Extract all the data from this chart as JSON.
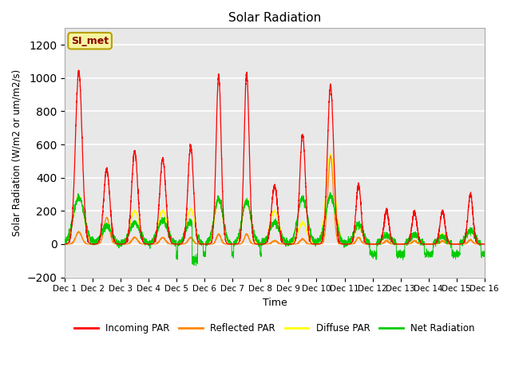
{
  "title": "Solar Radiation",
  "ylabel": "Solar Radiation (W/m2 or um/m2/s)",
  "xlabel": "Time",
  "ylim": [
    -200,
    1300
  ],
  "yticks": [
    -200,
    0,
    200,
    400,
    600,
    800,
    1000,
    1200
  ],
  "plot_bg_color": "#e8e8e8",
  "annotation_text": "SI_met",
  "annotation_color": "#8B0000",
  "annotation_bg": "#f5f5a0",
  "annotation_edge": "#b8a000",
  "n_days": 15,
  "colors": {
    "incoming": "#ff0000",
    "reflected": "#ff8800",
    "diffuse": "#ffff00",
    "net": "#00cc00"
  },
  "legend_labels": [
    "Incoming PAR",
    "Reflected PAR",
    "Diffuse PAR",
    "Net Radiation"
  ],
  "incoming_peaks": [
    1040,
    450,
    560,
    510,
    590,
    1020,
    1030,
    350,
    660,
    950,
    360,
    200,
    190,
    200,
    300
  ],
  "incoming_widths": [
    0.12,
    0.11,
    0.11,
    0.11,
    0.1,
    0.09,
    0.09,
    0.11,
    0.1,
    0.11,
    0.09,
    0.09,
    0.09,
    0.09,
    0.09
  ],
  "reflected_peaks": [
    73,
    160,
    40,
    40,
    40,
    60,
    60,
    20,
    30,
    530,
    40,
    20,
    20,
    20,
    25
  ],
  "diffuse_peaks": [
    290,
    120,
    200,
    200,
    210,
    270,
    270,
    200,
    130,
    540,
    110,
    60,
    55,
    60,
    80
  ],
  "diffuse_widths": [
    0.18,
    0.16,
    0.16,
    0.16,
    0.15,
    0.14,
    0.14,
    0.16,
    0.15,
    0.16,
    0.14,
    0.14,
    0.14,
    0.14,
    0.14
  ],
  "net_day_peaks": [
    280,
    110,
    130,
    140,
    135,
    270,
    260,
    130,
    280,
    290,
    120,
    55,
    55,
    45,
    80
  ],
  "net_widths": [
    0.2,
    0.18,
    0.18,
    0.18,
    0.17,
    0.16,
    0.16,
    0.18,
    0.17,
    0.18,
    0.16,
    0.16,
    0.16,
    0.16,
    0.16
  ],
  "night_net": -60,
  "pts_per_day": 288
}
